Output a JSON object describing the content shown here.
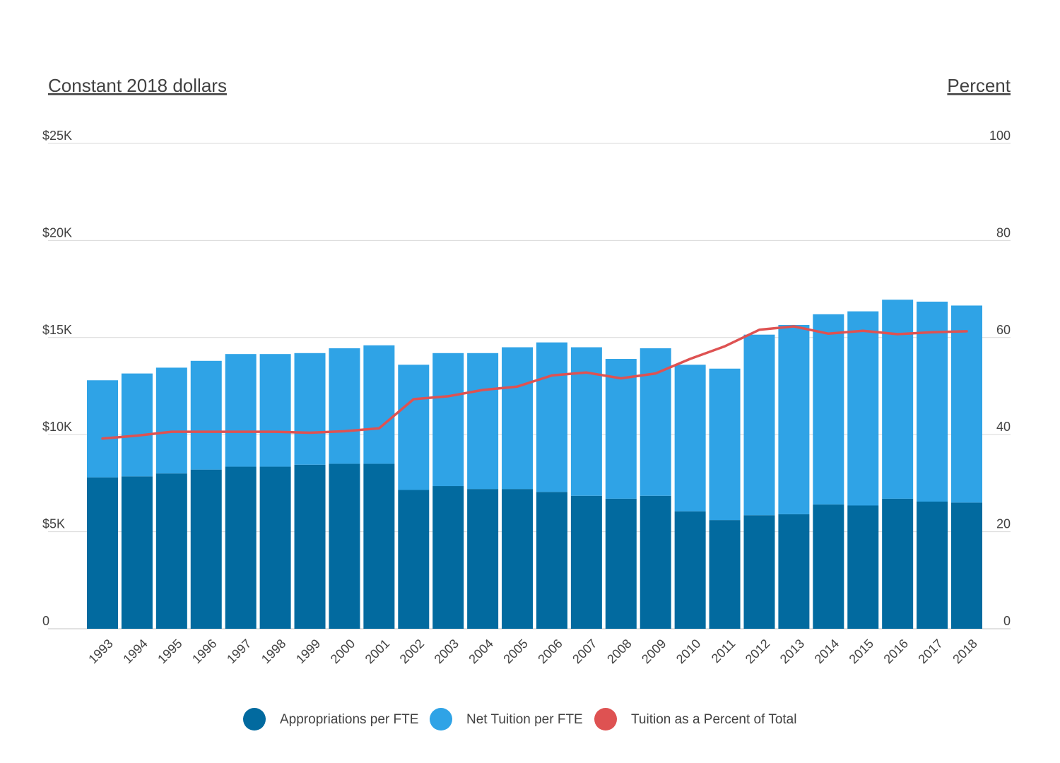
{
  "chart_data": {
    "type": "bar",
    "stacked": true,
    "left_axis_title": "Constant 2018 dollars",
    "right_axis_title": "Percent",
    "categories": [
      "1993",
      "1994",
      "1995",
      "1996",
      "1997",
      "1998",
      "1999",
      "2000",
      "2001",
      "2002",
      "2003",
      "2004",
      "2005",
      "2006",
      "2007",
      "2008",
      "2009",
      "2010",
      "2011",
      "2012",
      "2013",
      "2014",
      "2015",
      "2016",
      "2017",
      "2018"
    ],
    "series": [
      {
        "name": "Appropriations per FTE",
        "type": "bar",
        "axis": "left",
        "color": "#026a9f",
        "values": [
          7800,
          7850,
          8000,
          8200,
          8350,
          8350,
          8450,
          8500,
          8500,
          7150,
          7350,
          7200,
          7200,
          7050,
          6850,
          6700,
          6850,
          6050,
          5600,
          5850,
          5900,
          6400,
          6350,
          6700,
          6550,
          6500
        ]
      },
      {
        "name": "Net Tuition per FTE",
        "type": "bar",
        "axis": "left",
        "color": "#2fa3e6",
        "values": [
          5000,
          5300,
          5450,
          5600,
          5800,
          5800,
          5750,
          5950,
          6100,
          6450,
          6850,
          7000,
          7300,
          7700,
          7650,
          7200,
          7600,
          7550,
          7800,
          9300,
          9750,
          9800,
          10000,
          10250,
          10300,
          10150
        ]
      },
      {
        "name": "Tuition as a Percent of Total",
        "type": "line",
        "axis": "right",
        "color": "#de5252",
        "values": [
          39.2,
          39.8,
          40.6,
          40.6,
          40.6,
          40.6,
          40.4,
          40.7,
          41.3,
          47.3,
          47.9,
          49.2,
          49.9,
          52.2,
          52.8,
          51.6,
          52.6,
          55.6,
          58.2,
          61.6,
          62.3,
          60.8,
          61.4,
          60.7,
          61.1,
          61.3
        ]
      }
    ],
    "y_left": {
      "ticks": [
        "0",
        "$5K",
        "$10K",
        "$15K",
        "$20K",
        "$25K"
      ],
      "ylim": [
        0,
        25000
      ]
    },
    "y_right": {
      "ticks": [
        "0",
        "20",
        "40",
        "60",
        "80",
        "100"
      ],
      "ylim": [
        0,
        100
      ]
    },
    "grid": true,
    "legend": "bottom"
  }
}
